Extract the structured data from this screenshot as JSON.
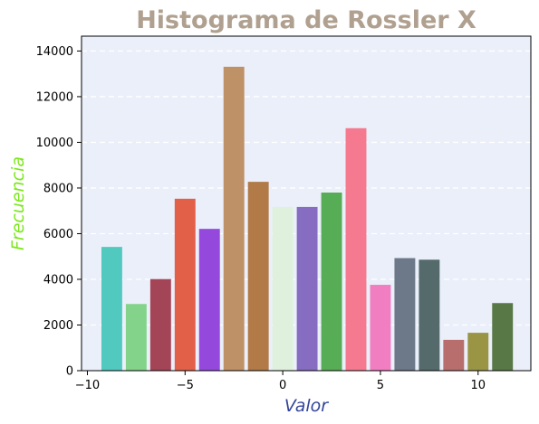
{
  "chart_data": {
    "type": "bar",
    "title": "Histograma de Rossler X",
    "xlabel": "Valor",
    "ylabel": "Frecuencia",
    "xlim": [
      -10.3,
      12.7
    ],
    "ylim": [
      0,
      14650
    ],
    "x_ticks": [
      -10,
      -5,
      0,
      5,
      10
    ],
    "y_ticks": [
      0,
      2000,
      4000,
      6000,
      8000,
      10000,
      12000,
      14000
    ],
    "grid": {
      "axis": "y",
      "style": "dashed"
    },
    "bin_width": 1.25,
    "bars": [
      {
        "x": -8.75,
        "value": 5420,
        "color": "#52c9be"
      },
      {
        "x": -7.5,
        "value": 2920,
        "color": "#83d38a"
      },
      {
        "x": -6.25,
        "value": 4010,
        "color": "#a44557"
      },
      {
        "x": -5.0,
        "value": 7530,
        "color": "#e25f48"
      },
      {
        "x": -3.75,
        "value": 6210,
        "color": "#9449dc"
      },
      {
        "x": -2.5,
        "value": 13310,
        "color": "#bf9166"
      },
      {
        "x": -1.25,
        "value": 8270,
        "color": "#b17a47"
      },
      {
        "x": 0.0,
        "value": 7170,
        "color": "#dff1dd"
      },
      {
        "x": 1.25,
        "value": 7170,
        "color": "#866dc1"
      },
      {
        "x": 2.5,
        "value": 7800,
        "color": "#57ac56"
      },
      {
        "x": 3.75,
        "value": 10620,
        "color": "#f57a90"
      },
      {
        "x": 5.0,
        "value": 3760,
        "color": "#f27ec2"
      },
      {
        "x": 6.25,
        "value": 4930,
        "color": "#6d7888"
      },
      {
        "x": 7.5,
        "value": 4860,
        "color": "#556a6a"
      },
      {
        "x": 8.75,
        "value": 1350,
        "color": "#b86e6c"
      },
      {
        "x": 10.0,
        "value": 1660,
        "color": "#9a9545"
      },
      {
        "x": 11.25,
        "value": 2960,
        "color": "#587945"
      }
    ],
    "colors": {
      "plot_background": "#eaeffa",
      "title": "#b0a090",
      "xlabel": "#33459a",
      "ylabel": "#7be81a",
      "grid": "#ffffff"
    }
  }
}
